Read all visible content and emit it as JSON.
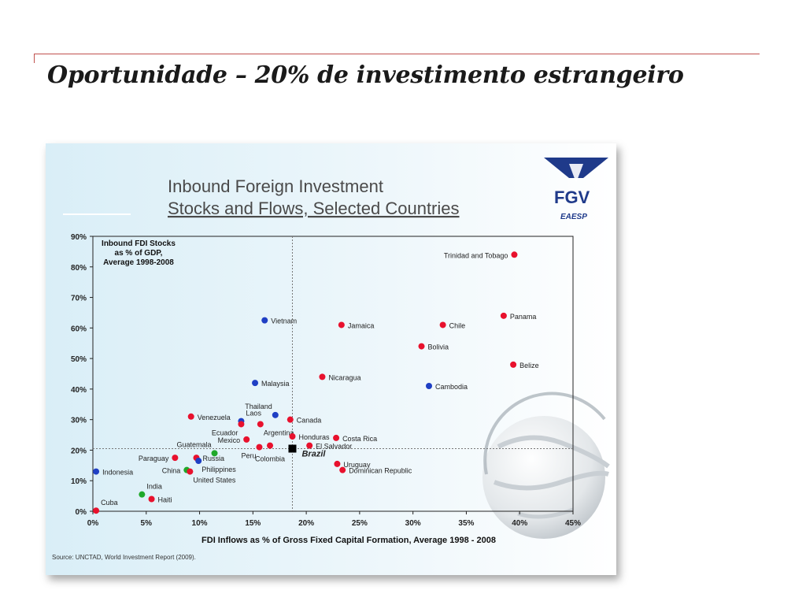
{
  "slide": {
    "title": "Oportunidade – 20% de investimento estrangeiro"
  },
  "figure": {
    "heading_line1": "Inbound Foreign Investment",
    "heading_line2": "Stocks and Flows, Selected Countries",
    "logo_text": "FGV",
    "logo_subtext": "EAESP",
    "source": "Source: UNCTAD, World Investment Report (2009)."
  },
  "colors": {
    "red": "#e8112d",
    "blue": "#1f3fc4",
    "green": "#1fa82a",
    "black": "#000000",
    "logo_blue": "#1f3a8a",
    "heading": "#4a4a4a",
    "accent_rule": "#c0504d"
  },
  "chart_data": {
    "type": "scatter",
    "title": "Inbound FDI Stocks as % of GDP, Average 1998-2008",
    "title_lines": [
      "Inbound FDI Stocks",
      "as % of GDP,",
      "Average 1998-2008"
    ],
    "xlabel": "FDI Inflows as % of Gross Fixed Capital Formation, Average 1998 - 2008",
    "ylabel": "",
    "xlim": [
      0,
      45
    ],
    "ylim": [
      0,
      90
    ],
    "x_ticks": [
      0,
      5,
      10,
      15,
      20,
      25,
      30,
      35,
      40,
      45
    ],
    "y_ticks": [
      0,
      10,
      20,
      30,
      40,
      50,
      60,
      70,
      80,
      90
    ],
    "x_tick_labels": [
      "0%",
      "5%",
      "10%",
      "15%",
      "20%",
      "25%",
      "30%",
      "35%",
      "40%",
      "45%"
    ],
    "y_tick_labels": [
      "0%",
      "10%",
      "20%",
      "30%",
      "40%",
      "50%",
      "60%",
      "70%",
      "80%",
      "90%"
    ],
    "reference_lines": {
      "x": 18.7,
      "y": 20.5
    },
    "grid": false,
    "points": [
      {
        "label": "Trinidad and Tobago",
        "x": 39.5,
        "y": 84,
        "color": "red",
        "label_pos": "left"
      },
      {
        "label": "Panama",
        "x": 38.5,
        "y": 64,
        "color": "red",
        "label_pos": "right"
      },
      {
        "label": "Chile",
        "x": 32.8,
        "y": 61,
        "color": "red",
        "label_pos": "right"
      },
      {
        "label": "Jamaica",
        "x": 23.3,
        "y": 61,
        "color": "red",
        "label_pos": "right"
      },
      {
        "label": "Vietnam",
        "x": 16.1,
        "y": 62.5,
        "color": "blue",
        "label_pos": "right"
      },
      {
        "label": "Bolivia",
        "x": 30.8,
        "y": 54,
        "color": "red",
        "label_pos": "right"
      },
      {
        "label": "Belize",
        "x": 39.4,
        "y": 48,
        "color": "red",
        "label_pos": "right"
      },
      {
        "label": "Nicaragua",
        "x": 21.5,
        "y": 44,
        "color": "red",
        "label_pos": "right"
      },
      {
        "label": "Cambodia",
        "x": 31.5,
        "y": 41,
        "color": "blue",
        "label_pos": "right"
      },
      {
        "label": "Malaysia",
        "x": 15.2,
        "y": 42,
        "color": "blue",
        "label_pos": "right"
      },
      {
        "label": "Thailand",
        "x": 17.1,
        "y": 31.5,
        "color": "blue",
        "label_pos": "above-left"
      },
      {
        "label": "Canada",
        "x": 18.5,
        "y": 30,
        "color": "red",
        "label_pos": "right"
      },
      {
        "label": "Venezuela",
        "x": 9.2,
        "y": 31,
        "color": "red",
        "label_pos": "right"
      },
      {
        "label": "Laos",
        "x": 13.9,
        "y": 29.5,
        "color": "blue",
        "label_pos": "above-right"
      },
      {
        "label": "Ecuador",
        "x": 13.9,
        "y": 28.5,
        "color": "red",
        "label_pos": "below-left"
      },
      {
        "label": "Argentina",
        "x": 15.7,
        "y": 28.5,
        "color": "red",
        "label_pos": "below-right"
      },
      {
        "label": "Honduras",
        "x": 18.7,
        "y": 24.5,
        "color": "red",
        "label_pos": "right"
      },
      {
        "label": "Costa Rica",
        "x": 22.8,
        "y": 24,
        "color": "red",
        "label_pos": "right"
      },
      {
        "label": "Mexico",
        "x": 14.4,
        "y": 23.5,
        "color": "red",
        "label_pos": "left"
      },
      {
        "label": "El Salvador",
        "x": 20.3,
        "y": 21.5,
        "color": "red",
        "label_pos": "right"
      },
      {
        "label": "Peru",
        "x": 15.6,
        "y": 21,
        "color": "red",
        "label_pos": "below-left"
      },
      {
        "label": "Colombia",
        "x": 16.6,
        "y": 21.5,
        "color": "red",
        "label_pos": "below"
      },
      {
        "label": "Brazil",
        "x": 18.7,
        "y": 20.5,
        "color": "black",
        "label_pos": "right-italic"
      },
      {
        "label": "Guatemala",
        "x": 11.4,
        "y": 19,
        "color": "green",
        "label_pos": "above-left"
      },
      {
        "label": "Russia",
        "x": 9.7,
        "y": 17.5,
        "color": "red",
        "label_pos": "right"
      },
      {
        "label": "Philippines",
        "x": 9.9,
        "y": 16.5,
        "color": "blue",
        "label_pos": "below-right"
      },
      {
        "label": "Paraguay",
        "x": 7.7,
        "y": 17.5,
        "color": "red",
        "label_pos": "left"
      },
      {
        "label": "Uruguay",
        "x": 22.9,
        "y": 15.5,
        "color": "red",
        "label_pos": "right"
      },
      {
        "label": "Dominican Republic",
        "x": 23.4,
        "y": 13.5,
        "color": "red",
        "label_pos": "right"
      },
      {
        "label": "China",
        "x": 8.8,
        "y": 13.5,
        "color": "green",
        "label_pos": "left"
      },
      {
        "label": "United States",
        "x": 9.1,
        "y": 13,
        "color": "red",
        "label_pos": "below-right"
      },
      {
        "label": "Indonesia",
        "x": 0.3,
        "y": 13,
        "color": "blue",
        "label_pos": "right"
      },
      {
        "label": "India",
        "x": 4.6,
        "y": 5.5,
        "color": "green",
        "label_pos": "above-right"
      },
      {
        "label": "Haiti",
        "x": 5.5,
        "y": 4,
        "color": "red",
        "label_pos": "right"
      },
      {
        "label": "Cuba",
        "x": 0.3,
        "y": 0.2,
        "color": "red",
        "label_pos": "above-right"
      }
    ]
  }
}
